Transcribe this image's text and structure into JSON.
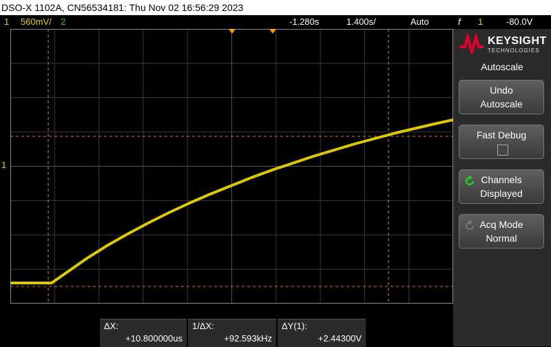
{
  "titlebar": {
    "text": "DSO-X 1102A, CN56534181: Thu Nov 02 16:56:29 2023"
  },
  "status": {
    "ch1_num": "1",
    "ch1_scale": "560mV/",
    "ch2_num": "2",
    "time_offset": "-1.280s",
    "time_scale": "1.400s/",
    "trigger_mode": "Auto",
    "trigger_symbol": "f",
    "trigger_channel": "1",
    "trigger_level": "-80.0V"
  },
  "screen": {
    "ch1_marker": "1"
  },
  "brand": {
    "name": "KEYSIGHT",
    "sub": "TECHNOLOGIES"
  },
  "menu": {
    "title": "Autoscale",
    "undo_l1": "Undo",
    "undo_l2": "Autoscale",
    "fastdebug_l1": "Fast Debug",
    "channels_l1": "Channels",
    "channels_l2": "Displayed",
    "acq_l1": "Acq Mode",
    "acq_l2": "Normal"
  },
  "measurements": {
    "dx_label": "ΔX:",
    "dx_value": "+10.800000us",
    "inv_label": "1/ΔX:",
    "inv_value": "+92.593kHz",
    "dy_label": "ΔY(1):",
    "dy_value": "+2.44300V"
  },
  "colors": {
    "ch1": "#e8d400",
    "ch2": "#22cc22",
    "cursor": "#e87a3a",
    "trigger": "#ff9900"
  }
}
